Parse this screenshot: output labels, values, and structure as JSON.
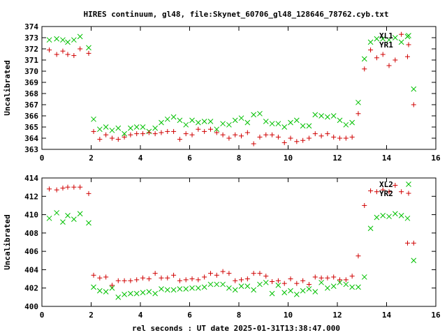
{
  "chart_data": [
    {
      "type": "scatter",
      "title": "HIRES continuum, gl48, file:Skynet_60706_gl48_128646_78762.cyb.txt",
      "xlabel": "",
      "ylabel": "Uncalibrated",
      "xlim": [
        0,
        16
      ],
      "ylim": [
        363,
        374
      ],
      "xticks": [
        0,
        2,
        4,
        6,
        8,
        10,
        12,
        14,
        16
      ],
      "yticks": [
        363,
        364,
        365,
        366,
        367,
        368,
        369,
        370,
        371,
        372,
        373,
        374
      ],
      "grid": false,
      "legend_position": "top-right",
      "series": [
        {
          "name": "XL1",
          "marker": "x",
          "color": "#00c000",
          "points": [
            [
              0.3,
              372.8
            ],
            [
              0.6,
              372.9
            ],
            [
              0.85,
              372.8
            ],
            [
              1.05,
              372.6
            ],
            [
              1.3,
              372.8
            ],
            [
              1.55,
              373.1
            ],
            [
              1.9,
              372.1
            ],
            [
              2.1,
              365.7
            ],
            [
              2.35,
              364.8
            ],
            [
              2.6,
              365.0
            ],
            [
              2.85,
              364.7
            ],
            [
              3.1,
              364.9
            ],
            [
              3.35,
              364.4
            ],
            [
              3.6,
              364.9
            ],
            [
              3.85,
              365.0
            ],
            [
              4.1,
              365.0
            ],
            [
              4.35,
              364.6
            ],
            [
              4.6,
              364.9
            ],
            [
              4.85,
              365.4
            ],
            [
              5.1,
              365.7
            ],
            [
              5.35,
              365.9
            ],
            [
              5.6,
              365.6
            ],
            [
              5.85,
              365.2
            ],
            [
              6.1,
              365.6
            ],
            [
              6.35,
              365.4
            ],
            [
              6.6,
              365.5
            ],
            [
              6.85,
              365.5
            ],
            [
              7.1,
              364.8
            ],
            [
              7.35,
              365.3
            ],
            [
              7.6,
              365.2
            ],
            [
              7.85,
              365.6
            ],
            [
              8.1,
              365.8
            ],
            [
              8.35,
              365.4
            ],
            [
              8.6,
              366.1
            ],
            [
              8.85,
              366.2
            ],
            [
              9.1,
              365.5
            ],
            [
              9.35,
              365.3
            ],
            [
              9.6,
              365.3
            ],
            [
              9.85,
              365.0
            ],
            [
              10.1,
              365.4
            ],
            [
              10.35,
              365.6
            ],
            [
              10.6,
              365.1
            ],
            [
              10.85,
              365.1
            ],
            [
              11.1,
              366.1
            ],
            [
              11.35,
              366.0
            ],
            [
              11.6,
              365.9
            ],
            [
              11.85,
              366.0
            ],
            [
              12.1,
              365.6
            ],
            [
              12.35,
              365.2
            ],
            [
              12.6,
              365.4
            ],
            [
              12.85,
              367.2
            ],
            [
              13.1,
              371.1
            ],
            [
              13.35,
              372.6
            ],
            [
              13.6,
              372.9
            ],
            [
              13.85,
              372.9
            ],
            [
              14.1,
              372.8
            ],
            [
              14.35,
              373.0
            ],
            [
              14.6,
              372.6
            ],
            [
              14.85,
              373.1
            ],
            [
              15.1,
              368.4
            ]
          ]
        },
        {
          "name": "YR1",
          "marker": "+",
          "color": "#d00000",
          "points": [
            [
              0.3,
              371.9
            ],
            [
              0.6,
              371.5
            ],
            [
              0.85,
              371.8
            ],
            [
              1.05,
              371.5
            ],
            [
              1.3,
              371.4
            ],
            [
              1.55,
              372.0
            ],
            [
              1.9,
              371.6
            ],
            [
              2.1,
              364.6
            ],
            [
              2.35,
              363.9
            ],
            [
              2.6,
              364.3
            ],
            [
              2.85,
              364.0
            ],
            [
              3.1,
              363.9
            ],
            [
              3.35,
              364.1
            ],
            [
              3.6,
              364.3
            ],
            [
              3.85,
              364.4
            ],
            [
              4.1,
              364.4
            ],
            [
              4.35,
              364.5
            ],
            [
              4.6,
              364.4
            ],
            [
              4.85,
              364.5
            ],
            [
              5.1,
              364.6
            ],
            [
              5.35,
              364.6
            ],
            [
              5.6,
              363.9
            ],
            [
              5.85,
              364.4
            ],
            [
              6.1,
              364.3
            ],
            [
              6.35,
              364.8
            ],
            [
              6.6,
              364.6
            ],
            [
              6.85,
              364.8
            ],
            [
              7.1,
              364.5
            ],
            [
              7.35,
              364.3
            ],
            [
              7.6,
              364.0
            ],
            [
              7.85,
              364.3
            ],
            [
              8.1,
              364.2
            ],
            [
              8.35,
              364.5
            ],
            [
              8.6,
              363.5
            ],
            [
              8.85,
              364.1
            ],
            [
              9.1,
              364.3
            ],
            [
              9.35,
              364.3
            ],
            [
              9.6,
              364.1
            ],
            [
              9.85,
              363.6
            ],
            [
              10.1,
              364.0
            ],
            [
              10.35,
              363.7
            ],
            [
              10.6,
              363.8
            ],
            [
              10.85,
              364.0
            ],
            [
              11.1,
              364.4
            ],
            [
              11.35,
              364.2
            ],
            [
              11.6,
              364.4
            ],
            [
              11.85,
              364.1
            ],
            [
              12.1,
              364.0
            ],
            [
              12.35,
              364.0
            ],
            [
              12.6,
              364.1
            ],
            [
              12.85,
              366.2
            ],
            [
              13.1,
              370.2
            ],
            [
              13.35,
              371.9
            ],
            [
              13.6,
              371.2
            ],
            [
              13.85,
              371.5
            ],
            [
              14.1,
              370.5
            ],
            [
              14.35,
              371.0
            ],
            [
              14.6,
              373.3
            ],
            [
              14.85,
              371.3
            ],
            [
              15.1,
              367.0
            ]
          ]
        }
      ]
    },
    {
      "type": "scatter",
      "title": "",
      "xlabel": "rel seconds : UT date 2025-01-31T13:38:47.000",
      "ylabel": "Uncalibrated",
      "xlim": [
        0,
        16
      ],
      "ylim": [
        400,
        414
      ],
      "xticks": [
        0,
        2,
        4,
        6,
        8,
        10,
        12,
        14,
        16
      ],
      "yticks": [
        400,
        402,
        404,
        406,
        408,
        410,
        412,
        414
      ],
      "grid": false,
      "legend_position": "top-right",
      "series": [
        {
          "name": "XL2",
          "marker": "x",
          "color": "#00c000",
          "points": [
            [
              0.3,
              409.6
            ],
            [
              0.6,
              410.2
            ],
            [
              0.85,
              409.2
            ],
            [
              1.05,
              409.9
            ],
            [
              1.3,
              409.5
            ],
            [
              1.55,
              410.1
            ],
            [
              1.9,
              409.1
            ],
            [
              2.1,
              402.1
            ],
            [
              2.35,
              401.7
            ],
            [
              2.6,
              401.6
            ],
            [
              2.85,
              402.0
            ],
            [
              3.1,
              401.0
            ],
            [
              3.35,
              401.3
            ],
            [
              3.6,
              401.4
            ],
            [
              3.85,
              401.4
            ],
            [
              4.1,
              401.5
            ],
            [
              4.35,
              401.6
            ],
            [
              4.6,
              401.4
            ],
            [
              4.85,
              401.9
            ],
            [
              5.1,
              401.8
            ],
            [
              5.35,
              401.8
            ],
            [
              5.6,
              401.9
            ],
            [
              5.85,
              401.9
            ],
            [
              6.1,
              402.0
            ],
            [
              6.35,
              402.0
            ],
            [
              6.6,
              402.1
            ],
            [
              6.85,
              402.4
            ],
            [
              7.1,
              402.4
            ],
            [
              7.35,
              402.4
            ],
            [
              7.6,
              402.0
            ],
            [
              7.85,
              401.8
            ],
            [
              8.1,
              402.2
            ],
            [
              8.35,
              402.2
            ],
            [
              8.6,
              401.8
            ],
            [
              8.85,
              402.4
            ],
            [
              9.1,
              402.6
            ],
            [
              9.35,
              401.4
            ],
            [
              9.6,
              402.3
            ],
            [
              9.85,
              401.5
            ],
            [
              10.1,
              401.7
            ],
            [
              10.35,
              401.3
            ],
            [
              10.6,
              401.7
            ],
            [
              10.85,
              401.9
            ],
            [
              11.1,
              401.6
            ],
            [
              11.35,
              402.6
            ],
            [
              11.6,
              402.0
            ],
            [
              11.85,
              402.2
            ],
            [
              12.1,
              402.6
            ],
            [
              12.35,
              402.4
            ],
            [
              12.6,
              402.1
            ],
            [
              12.85,
              402.1
            ],
            [
              13.1,
              403.2
            ],
            [
              13.35,
              408.5
            ],
            [
              13.6,
              409.7
            ],
            [
              13.85,
              409.9
            ],
            [
              14.1,
              409.8
            ],
            [
              14.35,
              410.1
            ],
            [
              14.6,
              409.9
            ],
            [
              14.85,
              409.6
            ],
            [
              15.1,
              405.0
            ]
          ]
        },
        {
          "name": "YR2",
          "marker": "+",
          "color": "#d00000",
          "points": [
            [
              0.3,
              412.8
            ],
            [
              0.6,
              412.7
            ],
            [
              0.85,
              412.9
            ],
            [
              1.05,
              413.0
            ],
            [
              1.3,
              413.0
            ],
            [
              1.55,
              413.0
            ],
            [
              1.9,
              412.3
            ],
            [
              2.1,
              403.4
            ],
            [
              2.35,
              403.1
            ],
            [
              2.6,
              403.2
            ],
            [
              2.85,
              402.3
            ],
            [
              3.1,
              402.8
            ],
            [
              3.35,
              402.8
            ],
            [
              3.6,
              402.8
            ],
            [
              3.85,
              402.9
            ],
            [
              4.1,
              403.1
            ],
            [
              4.35,
              403.0
            ],
            [
              4.6,
              403.6
            ],
            [
              4.85,
              403.1
            ],
            [
              5.1,
              403.1
            ],
            [
              5.35,
              403.4
            ],
            [
              5.6,
              402.8
            ],
            [
              5.85,
              402.9
            ],
            [
              6.1,
              403.0
            ],
            [
              6.35,
              402.9
            ],
            [
              6.6,
              403.2
            ],
            [
              6.85,
              403.6
            ],
            [
              7.1,
              403.4
            ],
            [
              7.35,
              403.8
            ],
            [
              7.6,
              403.6
            ],
            [
              7.85,
              402.8
            ],
            [
              8.1,
              402.9
            ],
            [
              8.35,
              403.0
            ],
            [
              8.6,
              403.6
            ],
            [
              8.85,
              403.6
            ],
            [
              9.1,
              403.3
            ],
            [
              9.35,
              402.7
            ],
            [
              9.6,
              402.8
            ],
            [
              9.85,
              402.5
            ],
            [
              10.1,
              403.0
            ],
            [
              10.35,
              402.5
            ],
            [
              10.6,
              402.8
            ],
            [
              10.85,
              402.4
            ],
            [
              11.1,
              403.2
            ],
            [
              11.35,
              403.1
            ],
            [
              11.6,
              403.1
            ],
            [
              11.85,
              403.2
            ],
            [
              12.1,
              402.9
            ],
            [
              12.35,
              402.9
            ],
            [
              12.6,
              403.3
            ],
            [
              12.85,
              405.5
            ],
            [
              13.1,
              411.0
            ],
            [
              13.35,
              412.6
            ],
            [
              13.6,
              412.5
            ],
            [
              13.85,
              412.7
            ],
            [
              14.1,
              412.5
            ],
            [
              14.35,
              413.2
            ],
            [
              14.6,
              412.5
            ],
            [
              14.85,
              406.9
            ],
            [
              15.1,
              406.9
            ]
          ]
        }
      ]
    }
  ]
}
